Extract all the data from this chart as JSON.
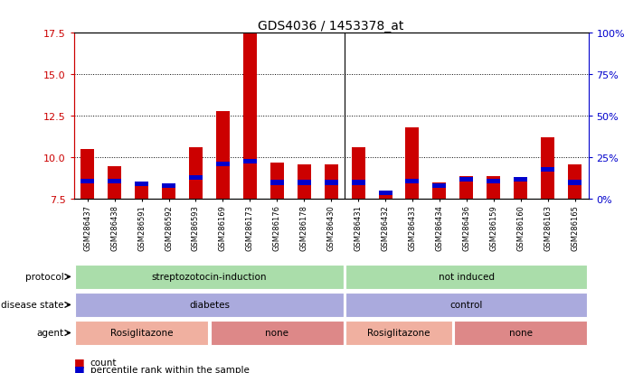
{
  "title": "GDS4036 / 1453378_at",
  "samples": [
    "GSM286437",
    "GSM286438",
    "GSM286591",
    "GSM286592",
    "GSM286593",
    "GSM286169",
    "GSM286173",
    "GSM286176",
    "GSM286178",
    "GSM286430",
    "GSM286431",
    "GSM286432",
    "GSM286433",
    "GSM286434",
    "GSM286436",
    "GSM286159",
    "GSM286160",
    "GSM286163",
    "GSM286165"
  ],
  "count_values": [
    10.5,
    9.5,
    8.4,
    8.3,
    10.6,
    12.8,
    17.5,
    9.7,
    9.6,
    9.6,
    10.6,
    7.9,
    11.8,
    8.5,
    8.9,
    8.9,
    8.8,
    11.2,
    9.6
  ],
  "percentile_values": [
    8.6,
    8.6,
    8.4,
    8.3,
    8.8,
    9.6,
    9.8,
    8.5,
    8.5,
    8.5,
    8.5,
    7.9,
    8.6,
    8.3,
    8.7,
    8.6,
    8.7,
    9.3,
    8.5
  ],
  "ylim": [
    7.5,
    17.5
  ],
  "yticks_left": [
    7.5,
    10.0,
    12.5,
    15.0,
    17.5
  ],
  "yticks_right_vals": [
    0,
    25,
    50,
    75,
    100
  ],
  "bar_color": "#cc0000",
  "percentile_color": "#0000cc",
  "separator_idx": 10,
  "protocol_groups": [
    {
      "label": "streptozotocin-induction",
      "start": 0,
      "end": 10,
      "color": "#aaddaa"
    },
    {
      "label": "not induced",
      "start": 10,
      "end": 19,
      "color": "#aaddaa"
    }
  ],
  "disease_groups": [
    {
      "label": "diabetes",
      "start": 0,
      "end": 10,
      "color": "#aaaadd"
    },
    {
      "label": "control",
      "start": 10,
      "end": 19,
      "color": "#aaaadd"
    }
  ],
  "agent_groups": [
    {
      "label": "Rosiglitazone",
      "start": 0,
      "end": 5,
      "color": "#f0b0a0"
    },
    {
      "label": "none",
      "start": 5,
      "end": 10,
      "color": "#dd8888"
    },
    {
      "label": "Rosiglitazone",
      "start": 10,
      "end": 14,
      "color": "#f0b0a0"
    },
    {
      "label": "none",
      "start": 14,
      "end": 19,
      "color": "#dd8888"
    }
  ],
  "row_labels": [
    "protocol",
    "disease state",
    "agent"
  ],
  "axis_color_left": "#cc0000",
  "axis_color_right": "#0000cc",
  "legend_count_label": "count",
  "legend_percentile_label": "percentile rank within the sample",
  "bg_color": "#ffffff"
}
